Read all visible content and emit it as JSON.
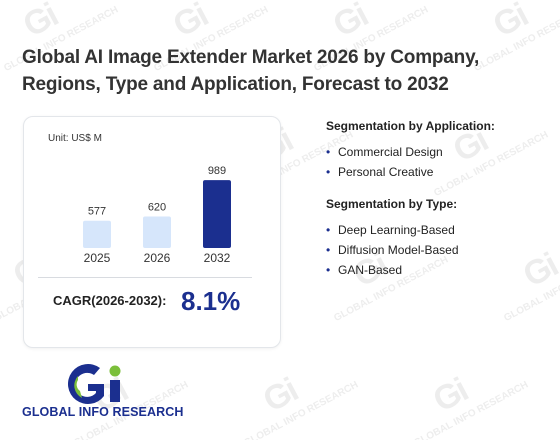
{
  "title": "Global AI Image Extender Market 2026 by Company, Regions, Type and Application, Forecast to 2032",
  "unit_label": "Unit: US$ M",
  "cagr": {
    "label": "CAGR(2026-2032):",
    "value": "8.1%"
  },
  "segments": [
    {
      "title": "Segmentation by Application:",
      "items": [
        "Commercial Design",
        "Personal Creative"
      ]
    },
    {
      "title": "Segmentation by Type:",
      "items": [
        "Deep Learning-Based",
        "Diffusion Model-Based",
        "GAN-Based"
      ]
    }
  ],
  "logo": {
    "text": "GLOBAL INFO RESEARCH",
    "mark": "Gi"
  },
  "watermark": {
    "mark": "Gi",
    "text": "GLOBAL INFO RESEARCH"
  },
  "colors": {
    "bar_light": "#d6e6fb",
    "bar_dark": "#1b2f8f",
    "accent": "#1b2f8f",
    "logo_green": "#7bbf3a"
  },
  "chart_data": {
    "type": "bar",
    "categories": [
      "2025",
      "2026",
      "2032"
    ],
    "values": [
      577,
      620,
      989
    ],
    "data_labels": [
      "577",
      "620",
      "989"
    ],
    "highlight_index": 2,
    "ylim": [
      0,
      1050
    ]
  }
}
